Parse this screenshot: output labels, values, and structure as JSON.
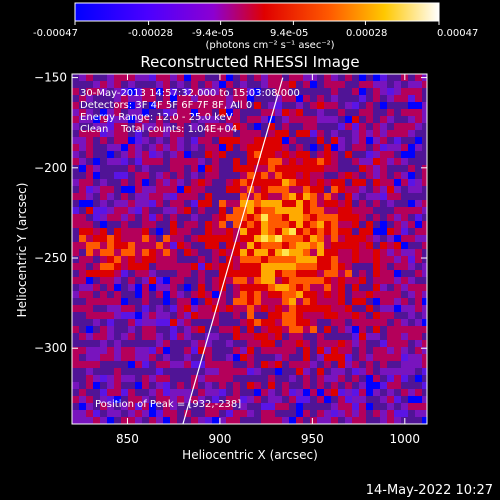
{
  "colorbar": {
    "tick_labels": [
      "-0.00047",
      "-0.00028",
      "-9.4e-05",
      "9.4e-05",
      "0.00028",
      "0.00047"
    ],
    "tick_values": [
      -0.00047,
      -0.00028,
      -9.4e-05,
      9.4e-05,
      0.00028,
      0.00047
    ],
    "units": "(photons cm⁻² s⁻¹ asec⁻²)",
    "colors": [
      "#0000ff",
      "#5a00ff",
      "#a000c8",
      "#e00000",
      "#ff6a00",
      "#ffc800",
      "#ffffff"
    ]
  },
  "chart_data": {
    "type": "heatmap",
    "title": "Reconstructed RHESSI Image",
    "xlabel": "Heliocentric X (arcsec)",
    "ylabel": "Heliocentric Y (arcsec)",
    "xlim": [
      820,
      1012
    ],
    "ylim": [
      -342,
      -148
    ],
    "x_ticks": [
      850,
      900,
      950,
      1000
    ],
    "y_ticks": [
      -150,
      -200,
      -250,
      -300
    ],
    "peak": {
      "x": 932,
      "y": -238
    },
    "limb_line": {
      "points": [
        [
          880,
          -342
        ],
        [
          934,
          -150
        ]
      ]
    },
    "annotations": {
      "time_range": "30-May-2013 14:57:32.000 to 15:03:08.000",
      "detectors": "Detectors: 3F 4F 5F 6F 7F 8F, All 0",
      "energy_range": "Energy Range: 12.0 - 25.0 keV",
      "method": "Clean    Total counts: 1.04E+04",
      "peak_label": "Position of Peak = [932,-238]"
    }
  },
  "footer": {
    "timestamp": "14-May-2022 10:27"
  }
}
